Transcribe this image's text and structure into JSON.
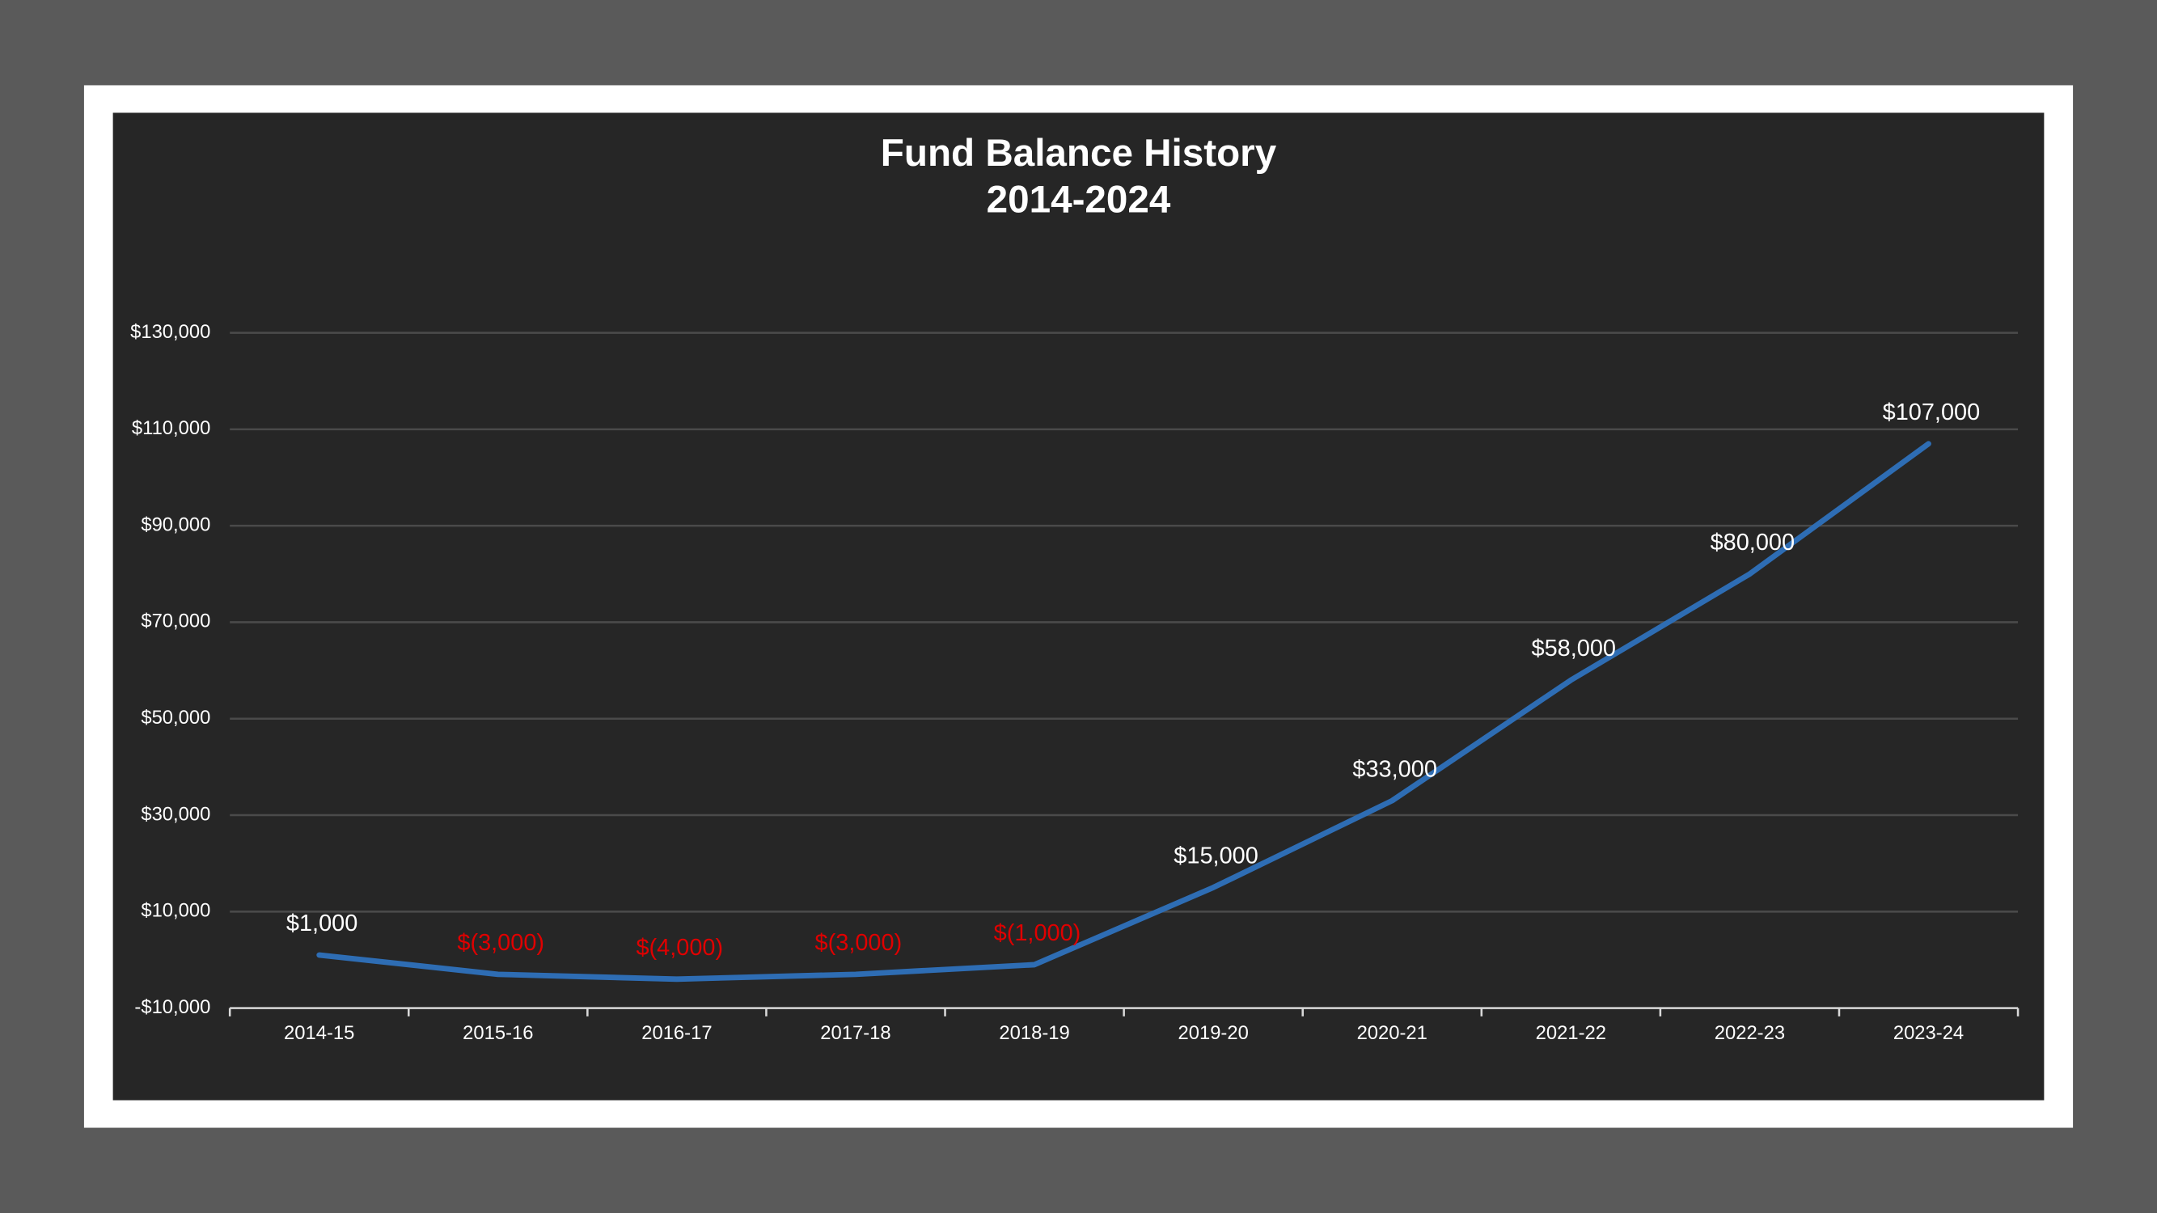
{
  "chart_data": {
    "type": "line",
    "title": "Fund Balance History",
    "subtitle": "2014-2024",
    "categories": [
      "2014-15",
      "2015-16",
      "2016-17",
      "2017-18",
      "2018-19",
      "2019-20",
      "2020-21",
      "2021-22",
      "2022-23",
      "2023-24"
    ],
    "values": [
      1000,
      -3000,
      -4000,
      -3000,
      -1000,
      15000,
      33000,
      58000,
      80000,
      107000
    ],
    "value_labels": [
      "$1,000",
      "$(3,000)",
      "$(4,000)",
      "$(3,000)",
      "$(1,000)",
      "$15,000",
      "$33,000",
      "$58,000",
      "$80,000",
      "$107,000"
    ],
    "color": "#2e6db4",
    "label_color": "#ffffff",
    "negative_label_color": "#e00000",
    "ylim": [
      -10000,
      130000
    ],
    "yticks": [
      {
        "value": -10000,
        "label": "-$10,000"
      },
      {
        "value": 10000,
        "label": "$10,000"
      },
      {
        "value": 30000,
        "label": "$30,000"
      },
      {
        "value": 50000,
        "label": "$50,000"
      },
      {
        "value": 70000,
        "label": "$70,000"
      },
      {
        "value": 90000,
        "label": "$90,000"
      },
      {
        "value": 110000,
        "label": "$110,000"
      },
      {
        "value": 130000,
        "label": "$130,000"
      }
    ],
    "grid": true
  }
}
